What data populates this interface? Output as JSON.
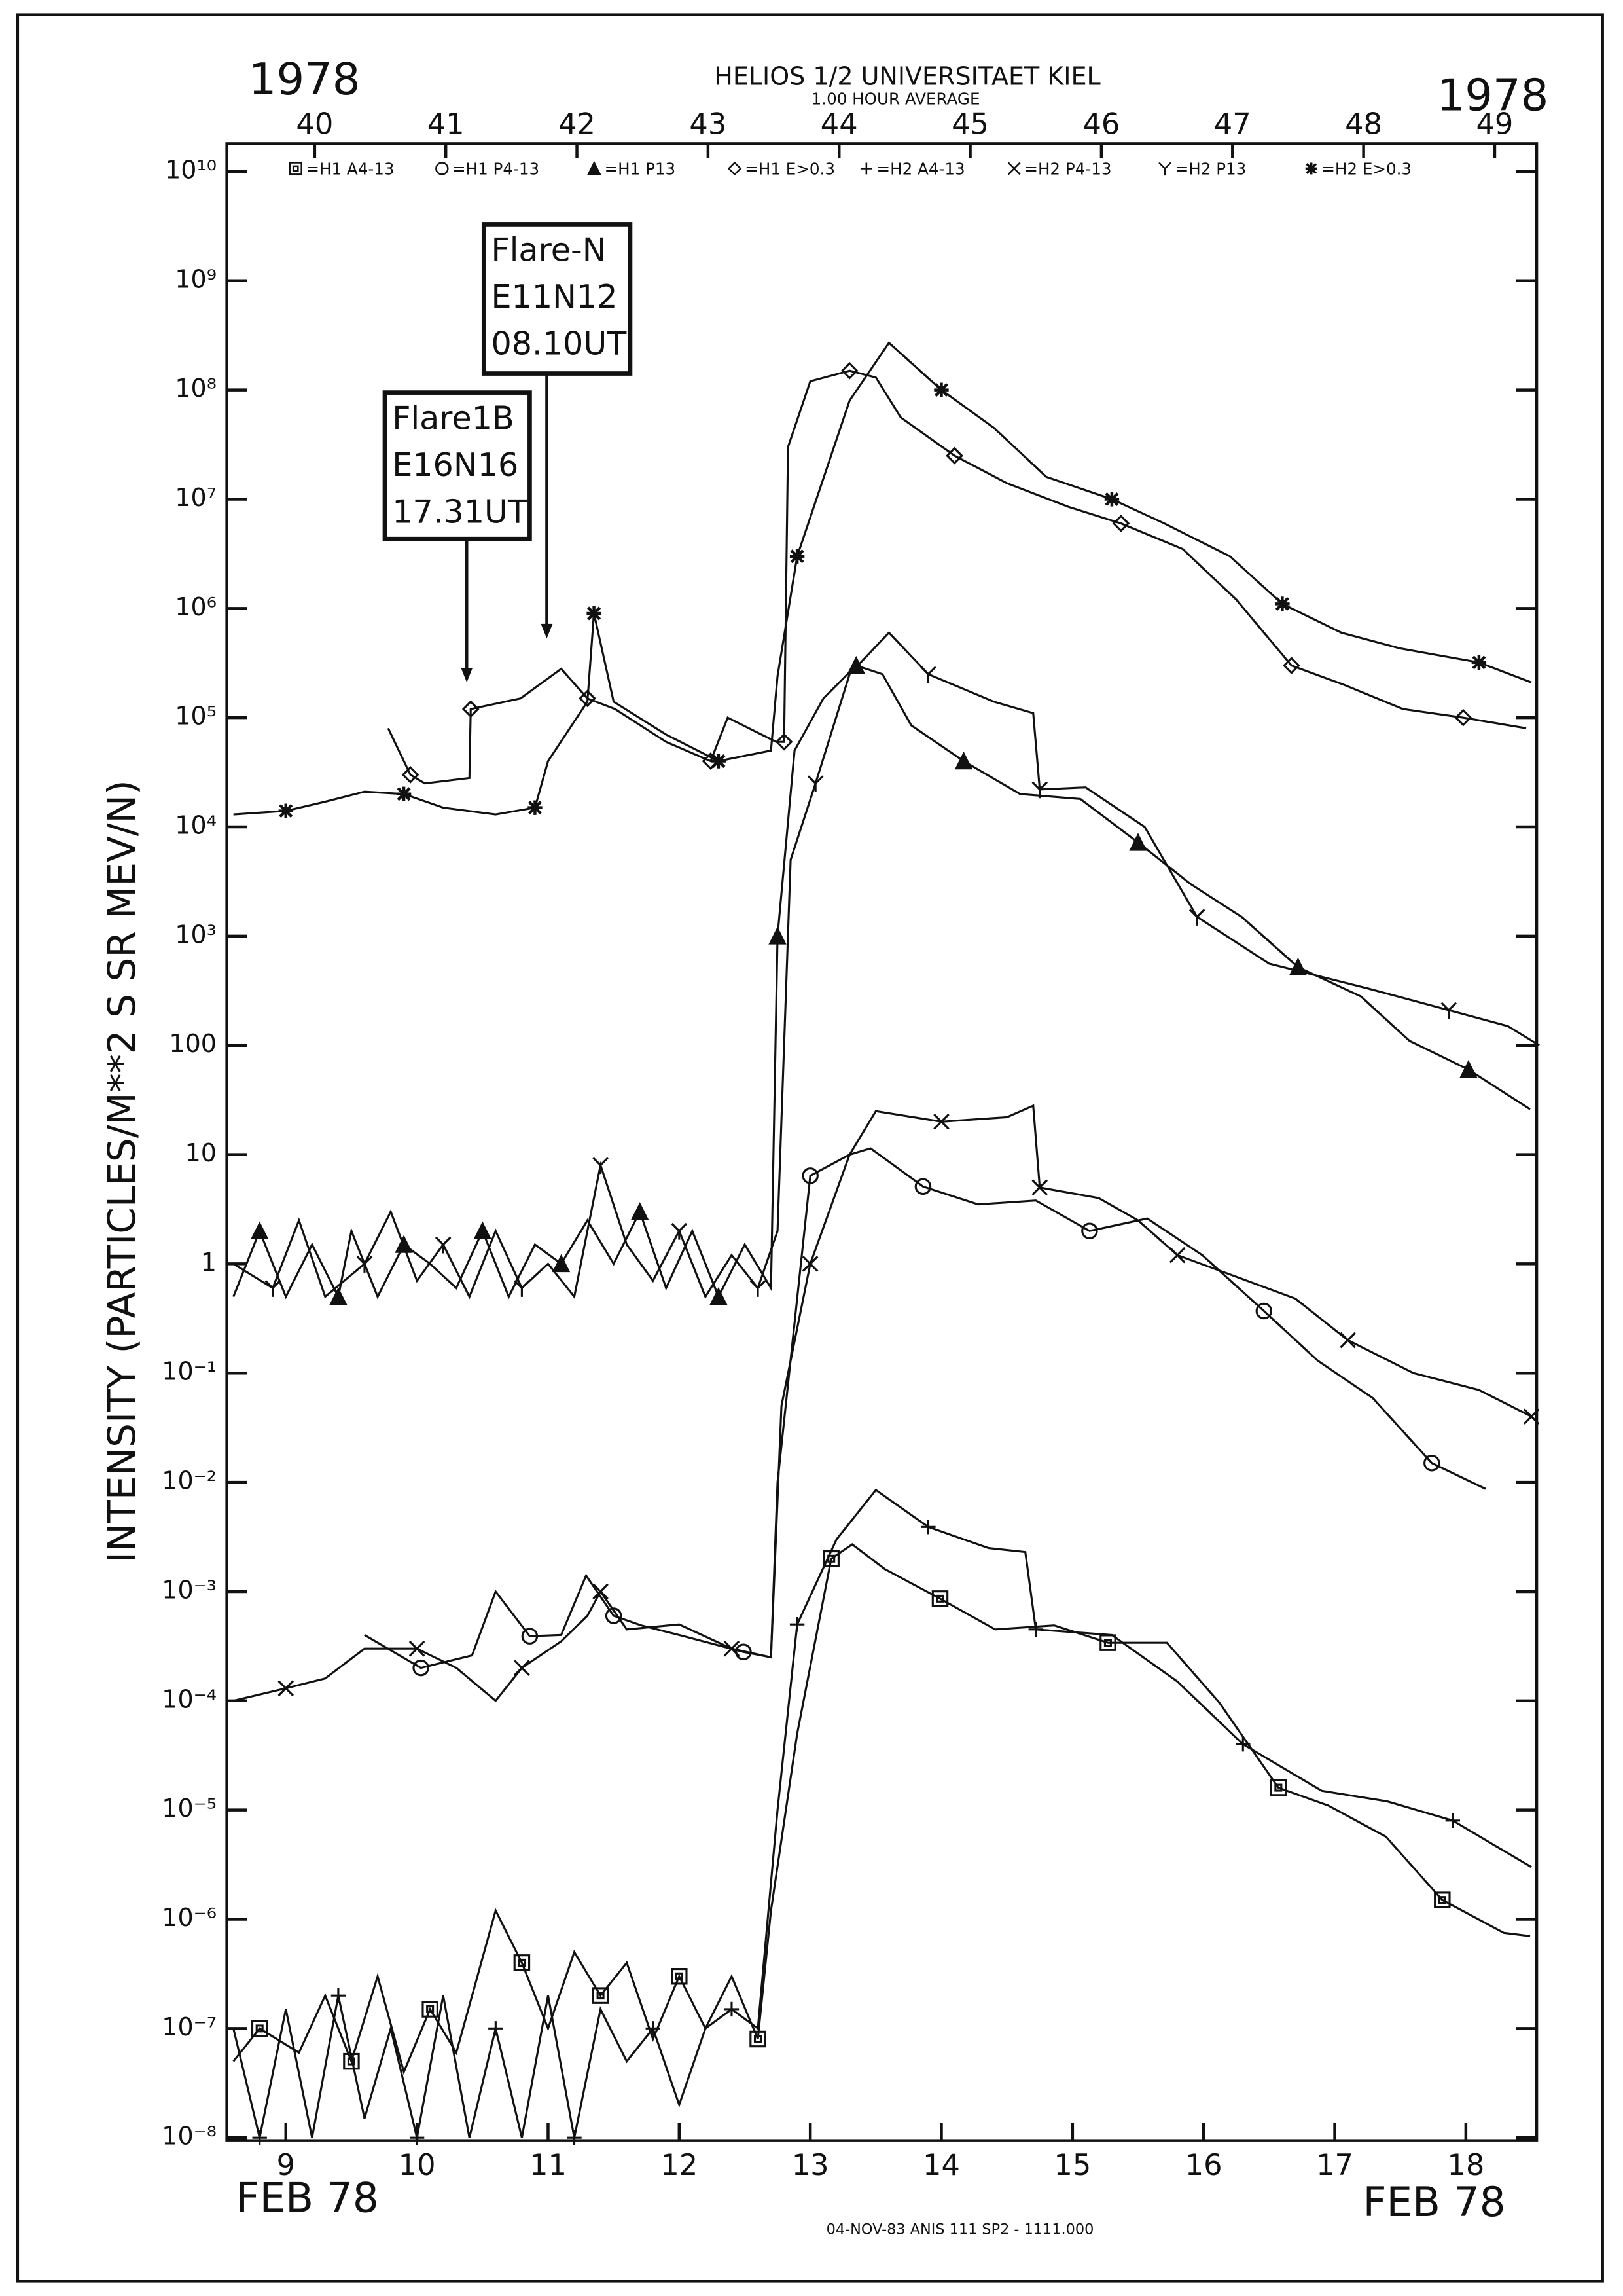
{
  "chart_data": {
    "type": "line",
    "title": "HELIOS 1/2  UNIVERSITAET KIEL",
    "subtitle": "1.00 HOUR AVERAGE",
    "year_labels": [
      "1978",
      "1978"
    ],
    "date_labels": [
      "FEB 78",
      "FEB 78"
    ],
    "footer": "04-NOV-83 ANIS 111 SP2 - 1111.000",
    "ylabel": "INTENSITY (PARTICLES/M**2 S SR MEV/N)",
    "yscale": "log",
    "xlim": [
      8.55,
      18.54
    ],
    "xticks": [
      9,
      10,
      11,
      12,
      13,
      14,
      15,
      16,
      17,
      18
    ],
    "x2lim": [
      39.33,
      49.32
    ],
    "x2ticks": [
      40,
      41,
      42,
      43,
      44,
      45,
      46,
      47,
      48,
      49
    ],
    "ylim": [
      1e-08,
      10000000000.0
    ],
    "yticks": [
      {
        "value": 10000000000.0,
        "label": "10¹⁰"
      },
      {
        "value": 1000000000.0,
        "label": "10⁹"
      },
      {
        "value": 100000000.0,
        "label": "10⁸"
      },
      {
        "value": 10000000.0,
        "label": "10⁷"
      },
      {
        "value": 1000000.0,
        "label": "10⁶"
      },
      {
        "value": 100000.0,
        "label": "10⁵"
      },
      {
        "value": 10000.0,
        "label": "10⁴"
      },
      {
        "value": 1000,
        "label": "10³"
      },
      100,
      10,
      1,
      {
        "value": 0.1,
        "label": "10⁻¹"
      },
      {
        "value": 0.01,
        "label": "10⁻²"
      },
      {
        "value": 0.001,
        "label": "10⁻³"
      },
      {
        "value": 0.0001,
        "label": "10⁻⁴"
      },
      {
        "value": 1e-05,
        "label": "10⁻⁵"
      },
      {
        "value": 1e-06,
        "label": "10⁻⁶"
      },
      {
        "value": 1e-07,
        "label": "10⁻⁷"
      },
      {
        "value": 1e-08,
        "label": "10⁻⁸"
      }
    ],
    "annotations": [
      {
        "lines": [
          "Flare1B",
          "E16N16",
          "17.31UT"
        ],
        "x": 10.38
      },
      {
        "lines": [
          "Flare-N",
          "E11N12",
          "08.10UT"
        ],
        "x": 10.99
      }
    ],
    "series": [
      {
        "name": "=H1 A4-13",
        "marker": "square",
        "color": "#111111",
        "x": [
          8.6,
          8.8,
          9.1,
          9.3,
          9.5,
          9.7,
          9.9,
          10.1,
          10.3,
          10.6,
          10.8,
          11.0,
          11.2,
          11.4,
          11.6,
          11.8,
          12.0,
          12.2,
          12.4,
          12.6,
          12.7,
          12.9,
          13.16,
          13.32,
          13.57,
          13.99,
          14.41,
          14.86,
          15.27,
          15.72,
          16.12,
          16.57,
          16.95,
          17.39,
          17.82,
          18.29,
          18.49
        ],
        "values": [
          5e-08,
          1e-07,
          6e-08,
          2e-07,
          5e-08,
          3e-07,
          4e-08,
          1.5e-07,
          6e-08,
          1.2e-06,
          4e-07,
          1e-07,
          5e-07,
          2e-07,
          4e-07,
          8e-08,
          3e-07,
          1e-07,
          3e-07,
          8e-08,
          1.2e-06,
          5e-05,
          0.002,
          0.0027,
          0.0016,
          0.00086,
          0.00045,
          0.00049,
          0.00034,
          0.00034,
          9.6e-05,
          1.6e-05,
          1.1e-05,
          5.7e-06,
          1.5e-06,
          7.5e-07,
          7e-07
        ]
      },
      {
        "name": "=H1 P4-13",
        "marker": "circle",
        "color": "#111111",
        "x": [
          9.6,
          10.03,
          10.42,
          10.6,
          10.86,
          11.1,
          11.29,
          11.5,
          11.71,
          12.0,
          12.49,
          12.7,
          12.75,
          13.0,
          13.3,
          13.46,
          13.86,
          14.28,
          14.72,
          15.13,
          15.57,
          15.99,
          16.46,
          16.87,
          17.29,
          17.74,
          18.15
        ],
        "values": [
          0.0004,
          0.0002,
          0.00026,
          0.001,
          0.00039,
          0.0004,
          0.0014,
          0.0006,
          0.00049,
          0.0004,
          0.00028,
          0.00025,
          0.01,
          6.4,
          10,
          11.4,
          5.1,
          3.5,
          3.8,
          2,
          2.6,
          1.2,
          0.37,
          0.13,
          0.059,
          0.015,
          0.0087
        ]
      },
      {
        "name": "=H1 P13",
        "marker": "triangle",
        "color": "#111111",
        "x": [
          8.6,
          8.8,
          9.0,
          9.2,
          9.4,
          9.5,
          9.7,
          9.9,
          10.1,
          10.3,
          10.5,
          10.7,
          10.9,
          11.1,
          11.3,
          11.5,
          11.7,
          11.9,
          12.1,
          12.3,
          12.5,
          12.7,
          12.75,
          12.88,
          13.1,
          13.35,
          13.55,
          13.77,
          14.17,
          14.6,
          15.06,
          15.5,
          15.9,
          16.29,
          16.72,
          17.2,
          17.57,
          18.02,
          18.49
        ],
        "values": [
          0.5,
          2,
          0.5,
          1.5,
          0.5,
          2,
          0.5,
          1.5,
          1,
          0.6,
          2,
          0.5,
          1.5,
          1,
          2.5,
          1,
          3,
          0.6,
          2,
          0.5,
          1.5,
          0.6,
          1000.0,
          50000.0,
          150000.0,
          300000.0,
          250000.0,
          85000.0,
          40000.0,
          20000.0,
          18000.0,
          7200.0,
          3000.0,
          1500.0,
          520.0,
          280.0,
          110.0,
          60,
          26
        ]
      },
      {
        "name": "=H1 E>0.3",
        "marker": "diamond",
        "color": "#111111",
        "x": [
          9.78,
          9.95,
          10.06,
          10.4,
          10.41,
          10.79,
          11.1,
          11.3,
          11.51,
          11.9,
          12.24,
          12.37,
          12.74,
          12.8,
          12.83,
          13.0,
          13.3,
          13.5,
          13.69,
          14.1,
          14.5,
          14.97,
          15.37,
          15.84,
          16.25,
          16.67,
          17.07,
          17.52,
          17.98,
          18.46
        ],
        "values": [
          80000.0,
          30000.0,
          25000.0,
          28000.0,
          120000.0,
          150000.0,
          280000.0,
          150000.0,
          120000.0,
          60000.0,
          40000.0,
          100000.0,
          60000.0,
          60000.0,
          30000000.0,
          120000000.0,
          150000000.0,
          130000000.0,
          56000000.0,
          25000000.0,
          14000000.0,
          8500000.0,
          6000000.0,
          3500000.0,
          1200000.0,
          300000.0,
          200000.0,
          120000.0,
          100000.0,
          80000.0
        ]
      },
      {
        "name": "=H2 A4-13",
        "marker": "plus",
        "color": "#111111",
        "x": [
          8.6,
          8.8,
          9.0,
          9.2,
          9.4,
          9.6,
          9.8,
          10.0,
          10.2,
          10.4,
          10.6,
          10.8,
          11.0,
          11.2,
          11.4,
          11.6,
          11.8,
          12.0,
          12.2,
          12.4,
          12.6,
          12.75,
          12.9,
          13.2,
          13.5,
          13.9,
          14.36,
          14.64,
          14.72,
          15.3,
          15.8,
          16.3,
          16.9,
          17.4,
          17.9,
          18.5
        ],
        "values": [
          1e-07,
          1e-08,
          1.5e-07,
          1e-08,
          2e-07,
          1.5e-08,
          1e-07,
          1e-08,
          2e-07,
          1e-08,
          1e-07,
          1e-08,
          2e-07,
          1e-08,
          1.5e-07,
          5e-08,
          1e-07,
          2e-08,
          1e-07,
          1.5e-07,
          1e-07,
          1e-05,
          0.0005,
          0.003,
          0.0085,
          0.0039,
          0.0025,
          0.0023,
          0.00045,
          0.0004,
          0.00015,
          4e-05,
          1.5e-05,
          1.2e-05,
          8e-06,
          3e-06
        ]
      },
      {
        "name": "=H2 P4-13",
        "marker": "x",
        "color": "#111111",
        "x": [
          8.6,
          9.0,
          9.3,
          9.6,
          10.0,
          10.3,
          10.6,
          10.8,
          11.1,
          11.3,
          11.4,
          11.6,
          12.0,
          12.4,
          12.7,
          12.78,
          13.0,
          13.3,
          13.5,
          14.0,
          14.5,
          14.7,
          14.75,
          15.2,
          15.5,
          15.8,
          16.2,
          16.7,
          17.1,
          17.6,
          18.1,
          18.5
        ],
        "values": [
          0.0001,
          0.00013,
          0.00016,
          0.0003,
          0.0003,
          0.0002,
          0.0001,
          0.0002,
          0.00035,
          0.0006,
          0.001,
          0.00045,
          0.0005,
          0.0003,
          0.00025,
          0.05,
          1,
          10,
          25,
          20,
          22,
          28,
          5,
          4,
          2.5,
          1.2,
          0.8,
          0.48,
          0.2,
          0.1,
          0.07,
          0.04
        ]
      },
      {
        "name": "=H2 P13",
        "marker": "y",
        "color": "#111111",
        "x": [
          8.6,
          8.9,
          9.1,
          9.3,
          9.6,
          9.8,
          10.0,
          10.2,
          10.4,
          10.6,
          10.8,
          11.0,
          11.2,
          11.4,
          11.6,
          11.8,
          12.0,
          12.2,
          12.4,
          12.6,
          12.75,
          12.85,
          13.04,
          13.3,
          13.6,
          13.9,
          14.4,
          14.7,
          14.75,
          15.1,
          15.55,
          15.95,
          16.5,
          17.26,
          17.87,
          18.32,
          18.56
        ],
        "values": [
          1,
          0.6,
          2.5,
          0.5,
          1,
          3,
          0.7,
          1.5,
          0.5,
          2,
          0.6,
          1,
          0.5,
          8,
          1.5,
          0.7,
          2,
          0.5,
          1.2,
          0.6,
          2,
          5000.0,
          25000.0,
          250000.0,
          600000.0,
          250000.0,
          140000.0,
          110000.0,
          22000.0,
          23000.0,
          10000.0,
          1500.0,
          560.0,
          330.0,
          210.0,
          150.0,
          100.0
        ]
      },
      {
        "name": "=H2 E>0.3",
        "marker": "asterisk",
        "color": "#111111",
        "x": [
          8.6,
          9.0,
          9.3,
          9.6,
          9.9,
          10.2,
          10.6,
          10.9,
          11.0,
          11.3,
          11.35,
          11.5,
          11.9,
          12.3,
          12.7,
          12.75,
          12.9,
          13.3,
          13.6,
          14.0,
          14.4,
          14.8,
          15.3,
          15.7,
          16.2,
          16.6,
          17.05,
          17.5,
          18.1,
          18.5
        ],
        "values": [
          13000.0,
          14000.0,
          17000.0,
          21000.0,
          20000.0,
          15000.0,
          13000.0,
          15000.0,
          40000.0,
          140000.0,
          900000.0,
          140000.0,
          70000.0,
          40000.0,
          50000.0,
          240000.0,
          3000000.0,
          80000000.0,
          270000000.0,
          100000000.0,
          45000000.0,
          16000000.0,
          10000000.0,
          6000000.0,
          3000000.0,
          1100000.0,
          600000.0,
          430000.0,
          320000.0,
          210000.0
        ]
      }
    ]
  }
}
